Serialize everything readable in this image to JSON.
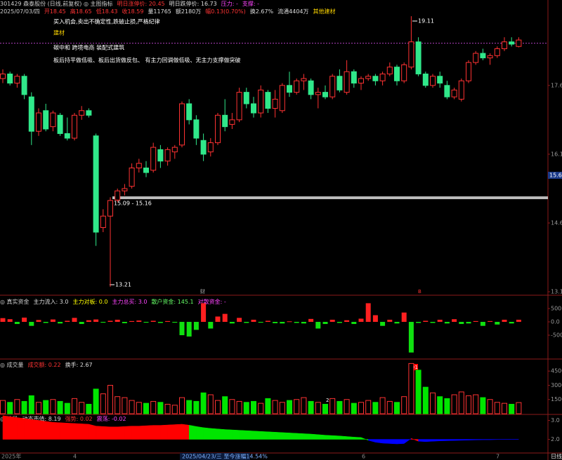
{
  "header": {
    "line1": [
      {
        "text": "301429 森泰股份 (日线,前复权) ◎ 主图指标",
        "color": "#cccccc"
      },
      {
        "text": "明日涨停价: 20.45",
        "color": "#ff3333"
      },
      {
        "text": "明日跌停价: 16.73",
        "color": "#dddddd"
      },
      {
        "text": "压力: -",
        "color": "#ff44ff"
      },
      {
        "text": "支撑: -",
        "color": "#ff44ff"
      }
    ],
    "line2": [
      {
        "text": "2025/07/03/四",
        "color": "#cccccc"
      },
      {
        "text": "开18.45",
        "color": "#ff3333"
      },
      {
        "text": "高18.65",
        "color": "#ff3333"
      },
      {
        "text": "低18.43",
        "color": "#ff3333"
      },
      {
        "text": "收18.59",
        "color": "#ff3333"
      },
      {
        "text": "量11765",
        "color": "#dddddd"
      },
      {
        "text": "额2180万",
        "color": "#dddddd"
      },
      {
        "text": "幅0.13(0.70%)",
        "color": "#ff3333"
      },
      {
        "text": "换2.67%",
        "color": "#dddddd"
      },
      {
        "text": "流通4404万",
        "color": "#dddddd"
      },
      {
        "text": "其他建材",
        "color": "#ffd700"
      }
    ]
  },
  "annotations": [
    "买入机会,卖出不确定性,跌破止损,严格纪律",
    "建材",
    "碳中和 跨境电商 装配式建筑",
    "板后持平做低吸、板后出货做反包、 有主力回调做低吸、无主力支撑做突破"
  ],
  "price_labels": {
    "high": "19.11",
    "low": "13.21",
    "range": "15.09 - 15.16"
  },
  "markers": [
    "财",
    "B"
  ],
  "volume_labels": [
    "91",
    "2"
  ],
  "x_labels": [
    "2025年",
    "4",
    "2025/04/23/三  至今涨幅14.54%",
    "6",
    "7"
  ],
  "period": "日线",
  "chart_data": [
    {
      "type": "candlestick",
      "open": [
        17.75,
        17.85,
        17.65,
        17.8,
        17.35,
        16.6,
        17.05,
        16.7,
        16.95,
        16.55,
        16.45,
        16.95,
        17.05,
        16.5,
        14.5,
        14.75,
        15.1,
        15.3,
        15.4,
        15.8,
        15.8,
        15.75,
        16.2,
        15.95,
        16.15,
        16.3,
        17.2,
        16.85,
        16.4,
        16.15,
        16.35,
        16.95,
        16.75,
        16.85,
        17.45,
        17.2,
        17.0,
        17.45,
        17.1,
        17.05,
        17.6,
        17.45,
        17.7,
        17.7,
        17.4,
        17.45,
        17.35,
        17.8,
        17.45,
        17.9,
        17.65,
        17.75,
        17.8,
        17.7,
        17.85,
        18.0,
        17.7,
        18.0,
        18.55,
        17.85,
        17.6,
        17.8,
        17.6,
        17.35,
        17.3,
        17.7,
        18.1,
        18.3,
        18.2,
        18.25,
        18.4,
        18.55,
        18.45
      ],
      "high": [
        17.95,
        17.9,
        17.85,
        17.85,
        17.45,
        17.1,
        17.2,
        17.05,
        17.0,
        16.9,
        17.0,
        17.15,
        17.1,
        16.55,
        14.9,
        15.16,
        15.35,
        15.45,
        15.9,
        16.0,
        15.95,
        16.35,
        16.3,
        16.25,
        16.3,
        17.25,
        17.3,
        16.95,
        16.55,
        16.45,
        17.0,
        17.3,
        17.0,
        17.55,
        17.55,
        17.35,
        17.6,
        17.5,
        17.5,
        17.65,
        17.9,
        17.75,
        17.85,
        17.75,
        17.55,
        17.6,
        17.85,
        17.95,
        18.15,
        17.95,
        17.8,
        17.85,
        17.85,
        17.9,
        18.1,
        18.05,
        18.1,
        19.11,
        18.65,
        17.9,
        17.85,
        17.9,
        17.7,
        17.55,
        17.75,
        18.15,
        18.35,
        18.4,
        18.3,
        18.45,
        18.65,
        18.65,
        18.65
      ],
      "low": [
        17.65,
        17.6,
        17.55,
        17.3,
        16.3,
        16.5,
        16.6,
        16.6,
        16.5,
        16.4,
        16.4,
        16.85,
        16.9,
        14.1,
        14.4,
        13.21,
        15.05,
        15.2,
        15.35,
        15.7,
        15.6,
        15.7,
        15.8,
        15.85,
        16.0,
        16.25,
        16.75,
        16.3,
        15.95,
        16.05,
        16.3,
        16.6,
        16.65,
        16.8,
        17.1,
        16.9,
        16.9,
        17.0,
        16.9,
        17.0,
        17.35,
        17.4,
        17.5,
        17.3,
        17.1,
        17.3,
        17.3,
        17.45,
        17.4,
        17.55,
        17.5,
        17.7,
        17.6,
        17.6,
        17.8,
        17.6,
        17.65,
        17.95,
        17.8,
        17.55,
        17.55,
        17.55,
        17.3,
        17.3,
        17.25,
        17.65,
        18.05,
        18.15,
        18.05,
        18.2,
        18.35,
        18.45,
        18.43
      ],
      "close": [
        17.85,
        17.65,
        17.8,
        17.4,
        16.6,
        17.0,
        16.65,
        17.0,
        16.55,
        16.45,
        16.95,
        17.05,
        16.95,
        14.4,
        14.75,
        15.09,
        15.3,
        15.35,
        15.8,
        15.9,
        15.7,
        16.25,
        15.95,
        16.2,
        16.25,
        17.2,
        16.85,
        16.45,
        16.1,
        16.35,
        16.95,
        16.7,
        16.85,
        17.45,
        17.2,
        17.0,
        17.5,
        17.1,
        17.3,
        17.6,
        17.45,
        17.7,
        17.75,
        17.4,
        17.45,
        17.35,
        17.8,
        17.5,
        17.9,
        17.65,
        17.75,
        17.8,
        17.7,
        17.85,
        18.0,
        17.7,
        18.05,
        18.55,
        17.85,
        17.6,
        17.8,
        17.65,
        17.35,
        17.5,
        17.7,
        18.1,
        18.3,
        18.2,
        18.25,
        18.4,
        18.55,
        18.5,
        18.59
      ],
      "colors": {
        "up": "#ff3232",
        "down": "#30e88a"
      },
      "ylim": [
        13.04,
        19.31
      ],
      "yticks": [
        17.6,
        16.1,
        14.6,
        13.1
      ],
      "cursor_price": 15.64,
      "support_level": 15.15,
      "reference_level": 18.52
    },
    {
      "type": "flow",
      "title": [
        {
          "text": "◎ 真实资金",
          "color": "#cccccc"
        },
        {
          "text": "主力流入: 3.0",
          "color": "#dddddd"
        },
        {
          "text": "主力对板: 0.0",
          "color": "#ffff00"
        },
        {
          "text": "主力总买: 3.0",
          "color": "#ff44ff"
        },
        {
          "text": "散户资金: 145.1",
          "color": "#66ff66"
        },
        {
          "text": "对散资金: -",
          "color": "#ff44ff"
        }
      ],
      "values": [
        140,
        100,
        -80,
        160,
        -150,
        70,
        -40,
        90,
        -60,
        40,
        150,
        -80,
        60,
        90,
        -30,
        40,
        80,
        -50,
        30,
        50,
        -30,
        40,
        -40,
        30,
        -30,
        -500,
        -550,
        -300,
        700,
        -250,
        200,
        300,
        -60,
        150,
        -40,
        80,
        -30,
        40,
        -50,
        -60,
        20,
        -40,
        -60,
        110,
        -250,
        -80,
        80,
        -40,
        60,
        -80,
        120,
        700,
        250,
        -150,
        80,
        -60,
        350,
        -1150,
        -40,
        40,
        -40,
        80,
        -60,
        100,
        -80,
        -60,
        30,
        -150,
        30,
        -100,
        80,
        -60,
        80
      ],
      "colors": {
        "up": "#ff2020",
        "down": "#10e010"
      },
      "ylim": [
        -1342,
        895
      ],
      "yticks": [
        {
          "value": 500,
          "label": "500.0"
        },
        {
          "value": 0,
          "label": "0.0"
        },
        {
          "value": -500,
          "label": "-500.0"
        }
      ]
    },
    {
      "type": "volume",
      "title": [
        {
          "text": "◎ 成交量",
          "color": "#cccccc"
        },
        {
          "text": "成交额: 0.22",
          "color": "#ff3333"
        },
        {
          "text": "换手: 2.67",
          "color": "#dddddd"
        }
      ],
      "values": [
        14000,
        12000,
        15000,
        13000,
        19000,
        12000,
        14000,
        15000,
        13000,
        11000,
        16000,
        12000,
        10000,
        26000,
        21000,
        30000,
        18000,
        17000,
        14000,
        12000,
        11000,
        13000,
        12000,
        10000,
        9000,
        17000,
        14000,
        13000,
        22000,
        20000,
        14000,
        18000,
        15000,
        13000,
        12000,
        13000,
        11000,
        16000,
        14000,
        12000,
        14000,
        15000,
        17000,
        13000,
        12000,
        10000,
        16000,
        13000,
        15000,
        11000,
        12000,
        14000,
        12000,
        17000,
        13000,
        12000,
        18000,
        53000,
        46000,
        28000,
        22000,
        18000,
        16000,
        20000,
        23000,
        19000,
        20000,
        17000,
        15000,
        12000,
        11000,
        10000,
        11765
      ],
      "colors": {
        "up": "#ff3232",
        "down": "#00e600"
      },
      "ylim": [
        0,
        55500
      ],
      "yticks": [
        45000,
        30000,
        15000
      ]
    },
    {
      "type": "area",
      "title": [
        {
          "text": "◎ 波段",
          "color": "#cccccc"
        },
        {
          "text": "动态市值: 8.19",
          "color": "#dddddd"
        },
        {
          "text": "强势: 0.02",
          "color": "#ff3333"
        },
        {
          "text": "震荡: -0.02",
          "color": "#ff44ff"
        }
      ],
      "values": [
        3.25,
        3.2,
        3.15,
        3.1,
        3.05,
        3.0,
        2.95,
        2.9,
        2.88,
        2.86,
        2.84,
        2.82,
        2.8,
        2.7,
        2.68,
        2.66,
        2.66,
        2.68,
        2.7,
        2.7,
        2.72,
        2.74,
        2.74,
        2.76,
        2.78,
        2.8,
        2.75,
        2.68,
        2.62,
        2.58,
        2.55,
        2.52,
        2.5,
        2.48,
        2.46,
        2.44,
        2.42,
        2.4,
        2.38,
        2.36,
        2.34,
        2.32,
        2.3,
        2.28,
        2.25,
        2.22,
        2.2,
        2.18,
        2.15,
        2.12,
        2.1,
        1.95,
        1.85,
        1.8,
        1.78,
        1.76,
        1.78,
        2.05,
        1.9,
        1.88,
        1.9,
        1.92,
        1.93,
        1.94,
        1.95,
        1.96,
        1.97,
        1.98,
        1.98,
        1.99,
        2.0,
        2.0,
        2.0
      ],
      "colors": [
        "#ff0000",
        "#ff0000",
        "#ff0000",
        "#ff0000",
        "#ff0000",
        "#ff0000",
        "#ff0000",
        "#ff0000",
        "#ff0000",
        "#ff0000",
        "#ff0000",
        "#ff0000",
        "#ff0000",
        "#ff0000",
        "#ff0000",
        "#ff0000",
        "#ff0000",
        "#ff0000",
        "#ff0000",
        "#ff0000",
        "#ff0000",
        "#ff0000",
        "#ff0000",
        "#ff0000",
        "#ff0000",
        "#ff0000",
        "#00e600",
        "#00e600",
        "#00e600",
        "#00e600",
        "#00e600",
        "#00e600",
        "#00e600",
        "#00e600",
        "#00e600",
        "#00e600",
        "#00e600",
        "#00e600",
        "#00e600",
        "#00e600",
        "#00e600",
        "#00e600",
        "#00e600",
        "#00e600",
        "#00e600",
        "#00e600",
        "#00e600",
        "#00e600",
        "#00e600",
        "#00e600",
        "#00e600",
        "#0000ff",
        "#0000ff",
        "#0000ff",
        "#0000ff",
        "#0000ff",
        "#0000ff",
        "#ff0000",
        "#0000ff",
        "#0000ff",
        "#0000ff",
        "#0000ff",
        "#0000ff",
        "#0000ff",
        "#0000ff",
        "#0000ff",
        "#0000ff",
        "#0000ff",
        "#0000ff",
        "#0000ff",
        "#0000ff",
        "#0000ff",
        "#0000ff"
      ],
      "baseline": 2.0,
      "ylim": [
        1.28,
        3.28
      ],
      "yticks": [
        {
          "value": 3,
          "label": "3.0"
        },
        {
          "value": 2,
          "label": "2.0"
        }
      ]
    }
  ]
}
